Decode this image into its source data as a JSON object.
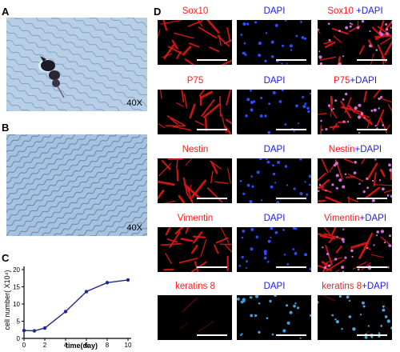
{
  "panels": {
    "A": {
      "label": "A",
      "magnification": "40X"
    },
    "B": {
      "label": "B",
      "magnification": "40X"
    },
    "C": {
      "label": "C"
    },
    "D": {
      "label": "D"
    }
  },
  "colors": {
    "marker": "#ff1a1a",
    "dapi": "#1a1aff",
    "line": "#1f2a8a"
  },
  "if_rows": [
    {
      "marker": "Sox10",
      "dapi": "DAPI",
      "merge_marker": "Sox10",
      "merge_plus": " +DAPI"
    },
    {
      "marker": "P75",
      "dapi": "DAPI",
      "merge_marker": "P75",
      "merge_plus": "+DAPI"
    },
    {
      "marker": "Nestin",
      "dapi": "DAPI",
      "merge_marker": "Nestin",
      "merge_plus": "+DAPI"
    },
    {
      "marker": "Vimentin",
      "dapi": "DAPI",
      "merge_marker": "Vimentin",
      "merge_plus": "+DAPI"
    },
    {
      "marker": "keratins 8",
      "dapi": "DAPI",
      "merge_marker": "keratins 8",
      "merge_plus": "+DAPI"
    }
  ],
  "chart_data": {
    "type": "line",
    "x": [
      0,
      1,
      2,
      4,
      6,
      8,
      10
    ],
    "y": [
      2.3,
      2.2,
      3.0,
      7.8,
      13.6,
      16.2,
      17.0
    ],
    "xlabel": "time(day)",
    "ylabel": "cell number( X10⁴)",
    "xlim": [
      0,
      10
    ],
    "ylim": [
      0,
      20
    ],
    "xticks": [
      "0",
      "2",
      "4",
      "6",
      "8",
      "10"
    ],
    "yticks": [
      "0",
      "5",
      "10",
      "15",
      "20"
    ],
    "grid": false,
    "marker": "circle"
  }
}
